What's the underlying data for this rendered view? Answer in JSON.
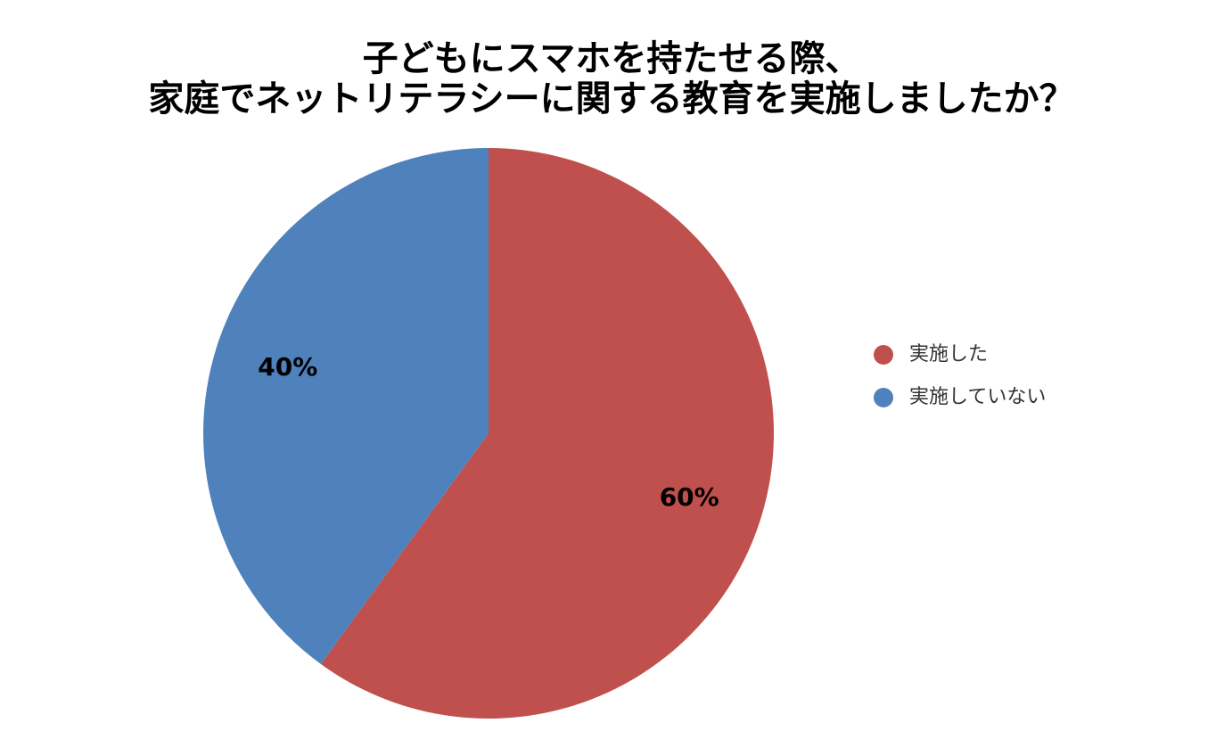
{
  "chart_data": {
    "type": "pie",
    "title": [
      "子どもにスマホを持たせる際、",
      "家庭でネットリテラシーに関する教育を実施しましたか？"
    ],
    "categories": [
      "実施した",
      "実施していない"
    ],
    "values": [
      60,
      40
    ],
    "value_labels": [
      "60%",
      "40%"
    ],
    "colors": [
      "#c0504d",
      "#4f81bd"
    ],
    "legend": "right"
  }
}
